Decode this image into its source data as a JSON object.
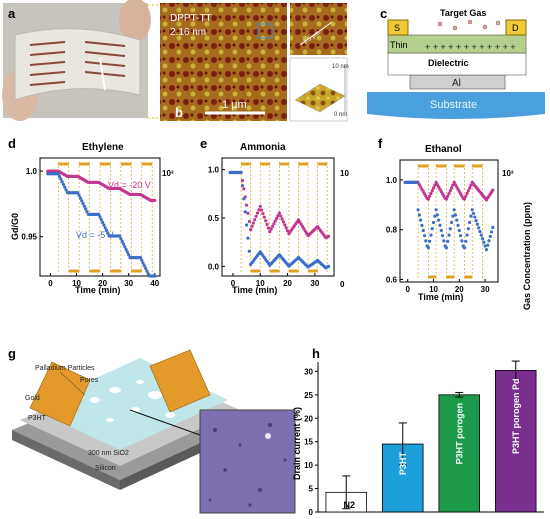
{
  "panels": {
    "a": {
      "label": "a"
    },
    "b": {
      "label": "b",
      "sample": "DPPT-TT",
      "thickness": "2.16 nm",
      "scale": "1 μm"
    },
    "b_zoom": {
      "dim": "1.5 μm"
    },
    "b_3d": {
      "ztop": "10 nm",
      "zbot": "0 nm"
    },
    "c": {
      "label": "c",
      "target_gas": "Target Gas",
      "source": "S",
      "drain": "D",
      "film": "Thin",
      "dielectric": "Dielectric",
      "gate": "Al",
      "substrate": "Substrate"
    },
    "d": {
      "label": "d",
      "title": "Ethylene",
      "xlabel": "Time (min)",
      "ylabel": "Gd/G0",
      "note_top": "10³",
      "vd1": "Vd = -20 V",
      "vd2": "Vd = -5 V"
    },
    "e": {
      "label": "e",
      "title": "Ammonia",
      "xlabel": "Time (min)",
      "right_top": "10",
      "right_bot": "0"
    },
    "f": {
      "label": "f",
      "title": "Ethanol",
      "xlabel": "Time (min)",
      "ylabel_right": "Gas Concentration (ppm)",
      "right_top": "10³"
    },
    "g": {
      "label": "g",
      "palladium": "Palladium Particles",
      "pores": "Pores",
      "gold": "Gold",
      "p3ht": "P3HT",
      "sio2": "300 nm SiO2",
      "si": "Silicon"
    },
    "h": {
      "label": "h",
      "ylabel": "Drain current (%)"
    }
  },
  "chart_data": [
    {
      "type": "scatter",
      "panel": "d",
      "title": "Ethylene",
      "xlabel": "Time (min)",
      "ylabel": "Gd/G0",
      "xlim": [
        -4,
        42
      ],
      "ylim": [
        0.92,
        1.01
      ],
      "xticks": [
        0,
        10,
        20,
        30,
        40
      ],
      "yticks": [
        0.95,
        1.0
      ],
      "pulses": [
        [
          3,
          7
        ],
        [
          11,
          15
        ],
        [
          19,
          23
        ],
        [
          27,
          31
        ],
        [
          35,
          39
        ]
      ],
      "series": [
        {
          "name": "Vd = -20 V",
          "color": "#c2378f",
          "start": 1.0,
          "drop": 0.0046,
          "recover": 0.0012,
          "shape": "linear"
        },
        {
          "name": "Vd = -5 V",
          "color": "#3c6fc8",
          "start": 0.998,
          "drop": 0.0165,
          "recover": 0.004,
          "shape": "linear"
        }
      ]
    },
    {
      "type": "scatter",
      "panel": "e",
      "title": "Ammonia",
      "xlabel": "Time (min)",
      "xlim": [
        -4,
        37
      ],
      "ylim": [
        -0.1,
        1.12
      ],
      "xticks": [
        0,
        10,
        20,
        30
      ],
      "yticks": [
        0.0,
        0.5,
        1.0
      ],
      "pulses": [
        [
          3,
          6.5
        ],
        [
          10,
          13.5
        ],
        [
          17,
          20.5
        ],
        [
          24,
          27.5
        ],
        [
          31,
          34.5
        ]
      ],
      "series": [
        {
          "name": "pink",
          "color": "#c2378f",
          "start": 0.97,
          "first": 0.38,
          "peak": 0.62,
          "decay": 0.07,
          "shape": "sawtooth"
        },
        {
          "name": "blue",
          "color": "#3c6fc8",
          "start": 0.97,
          "first": 0.02,
          "peak": 0.15,
          "decay": 0.03,
          "shape": "sawtooth"
        }
      ]
    },
    {
      "type": "scatter",
      "panel": "f",
      "title": "Ethanol",
      "xlabel": "Time (min)",
      "xlim": [
        -3,
        35
      ],
      "ylim": [
        0.59,
        1.08
      ],
      "xticks": [
        0,
        10,
        20,
        30
      ],
      "yticks": [
        0.6,
        0.8,
        1.0
      ],
      "pulses": [
        [
          4,
          8
        ],
        [
          11,
          15
        ],
        [
          18,
          22
        ],
        [
          25,
          29
        ]
      ],
      "series": [
        {
          "name": "pink",
          "color": "#c2378f",
          "start": 0.99,
          "low": 0.92,
          "high": 0.99,
          "shape": "wave"
        },
        {
          "name": "blue",
          "color": "#3c6fc8",
          "start": 0.99,
          "low": 0.72,
          "high": 0.88,
          "shape": "wave"
        }
      ]
    },
    {
      "type": "bar",
      "panel": "h",
      "ylabel": "Drain current (%)",
      "ylim": [
        0,
        32
      ],
      "yticks": [
        0,
        5,
        10,
        15,
        20,
        25,
        30
      ],
      "categories": [
        "N2",
        "P3HT",
        "P3HT porogen",
        "P3HT porogen Pd"
      ],
      "values": [
        4.2,
        14.5,
        25.0,
        30.2
      ],
      "errors": [
        3.5,
        4.5,
        0.5,
        2.0
      ],
      "colors": [
        "#ffffff",
        "#1c9fdb",
        "#1c9a4a",
        "#7a2e8e"
      ]
    }
  ]
}
